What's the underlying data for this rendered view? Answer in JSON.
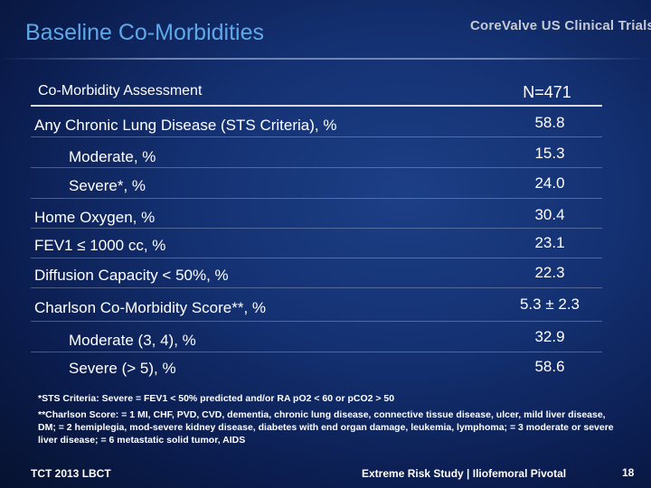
{
  "slide": {
    "title": "Baseline Co-Morbidities",
    "brand": "CoreValve US Clinical Trials"
  },
  "table": {
    "header_label": "Co-Morbidity Assessment",
    "header_value": "N=471",
    "rows": [
      {
        "label": "Any Chronic Lung Disease (STS Criteria), %",
        "value": "58.8"
      },
      {
        "label": "Moderate, %",
        "value": "15.3"
      },
      {
        "label": "Severe*, %",
        "value": "24.0"
      },
      {
        "label": "Home Oxygen, %",
        "value": "30.4"
      },
      {
        "label": "FEV1 ≤ 1000 cc, %",
        "value": "23.1"
      },
      {
        "label": "Diffusion Capacity < 50%, %",
        "value": "22.3"
      },
      {
        "label": "Charlson Co-Morbidity Score**, %",
        "value": "5.3 ± 2.3"
      },
      {
        "label": "Moderate (3, 4), %",
        "value": "32.9"
      },
      {
        "label": "Severe (> 5), %",
        "value": "58.6"
      }
    ]
  },
  "notes": {
    "sts": "*STS Criteria:  Severe = FEV1 < 50% predicted and/or RA pO2 < 60 or pCO2 > 50",
    "charlson": "**Charlson Score: = 1 MI, CHF, PVD, CVD, dementia, chronic lung disease, connective tissue disease, ulcer, mild liver disease, DM; = 2 hemiplegia, mod-severe kidney disease, diabetes with end organ damage, leukemia, lymphoma; = 3 moderate or severe liver disease; = 6 metastatic solid tumor, AIDS"
  },
  "footer": {
    "left": "TCT 2013 LBCT",
    "middle": "Extreme Risk Study | Iliofemoral Pivotal",
    "page_number": "18"
  }
}
